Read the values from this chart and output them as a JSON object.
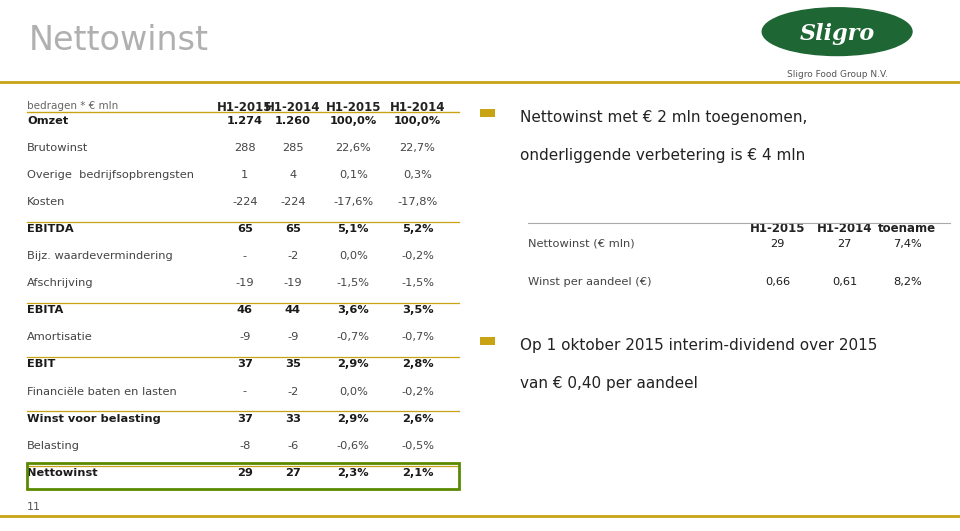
{
  "title": "Nettowinst",
  "title_color": "#b0b0b0",
  "bg_color": "#ffffff",
  "gold_line_color": "#c8a415",
  "green_border_color": "#5a8a00",
  "table_bg_light": "#fdf5e0",
  "col_header": [
    "H1-2015",
    "H1-2014",
    "H1-2015",
    "H1-2014"
  ],
  "row_label_col": "bedragen * € mln",
  "rows": [
    {
      "label": "Omzet",
      "bold": true,
      "vals": [
        "1.274",
        "1.260",
        "100,0%",
        "100,0%"
      ]
    },
    {
      "label": "Brutowinst",
      "bold": false,
      "vals": [
        "288",
        "285",
        "22,6%",
        "22,7%"
      ]
    },
    {
      "label": "Overige  bedrijfsopbrengsten",
      "bold": false,
      "vals": [
        "1",
        "4",
        "0,1%",
        "0,3%"
      ]
    },
    {
      "label": "Kosten",
      "bold": false,
      "vals": [
        "-224",
        "-224",
        "-17,6%",
        "-17,8%"
      ]
    },
    {
      "label": "EBITDA",
      "bold": true,
      "vals": [
        "65",
        "65",
        "5,1%",
        "5,2%"
      ]
    },
    {
      "label": "Bijz. waardevermindering",
      "bold": false,
      "vals": [
        "-",
        "-2",
        "0,0%",
        "-0,2%"
      ]
    },
    {
      "label": "Afschrijving",
      "bold": false,
      "vals": [
        "-19",
        "-19",
        "-1,5%",
        "-1,5%"
      ]
    },
    {
      "label": "EBITA",
      "bold": true,
      "vals": [
        "46",
        "44",
        "3,6%",
        "3,5%"
      ]
    },
    {
      "label": "Amortisatie",
      "bold": false,
      "vals": [
        "-9",
        "-9",
        "-0,7%",
        "-0,7%"
      ]
    },
    {
      "label": "EBIT",
      "bold": true,
      "vals": [
        "37",
        "35",
        "2,9%",
        "2,8%"
      ]
    },
    {
      "label": "Financiële baten en lasten",
      "bold": false,
      "vals": [
        "-",
        "-2",
        "0,0%",
        "-0,2%"
      ]
    },
    {
      "label": "Winst voor belasting",
      "bold": true,
      "vals": [
        "37",
        "33",
        "2,9%",
        "2,6%"
      ]
    },
    {
      "label": "Belasting",
      "bold": false,
      "vals": [
        "-8",
        "-6",
        "-0,6%",
        "-0,5%"
      ]
    },
    {
      "label": "Nettowinst",
      "bold": true,
      "vals": [
        "29",
        "27",
        "2,3%",
        "2,1%"
      ],
      "highlight": true
    }
  ],
  "bullet_color": "#c8a415",
  "bullet1_text1": "Nettowinst met € 2 mln toegenomen,",
  "bullet1_text2": "onderliggende verbetering is € 4 mln",
  "mini_table_headers": [
    "H1-2015",
    "H1-2014",
    "toename"
  ],
  "mini_table_rows": [
    {
      "label": "Nettowinst (€ mln)",
      "vals": [
        "29",
        "27",
        "7,4%"
      ]
    },
    {
      "label": "Winst per aandeel (€)",
      "vals": [
        "0,66",
        "0,61",
        "8,2%"
      ]
    }
  ],
  "bullet2_text1": "Op 1 oktober 2015 interim-dividend over 2015",
  "bullet2_text2": "van € 0,40 per aandeel",
  "footer_num": "11",
  "logo_text": "Sligro",
  "logo_subtext": "Sligro Food Group N.V.",
  "logo_bg": "#1e6634",
  "logo_ring": "#c8a415"
}
